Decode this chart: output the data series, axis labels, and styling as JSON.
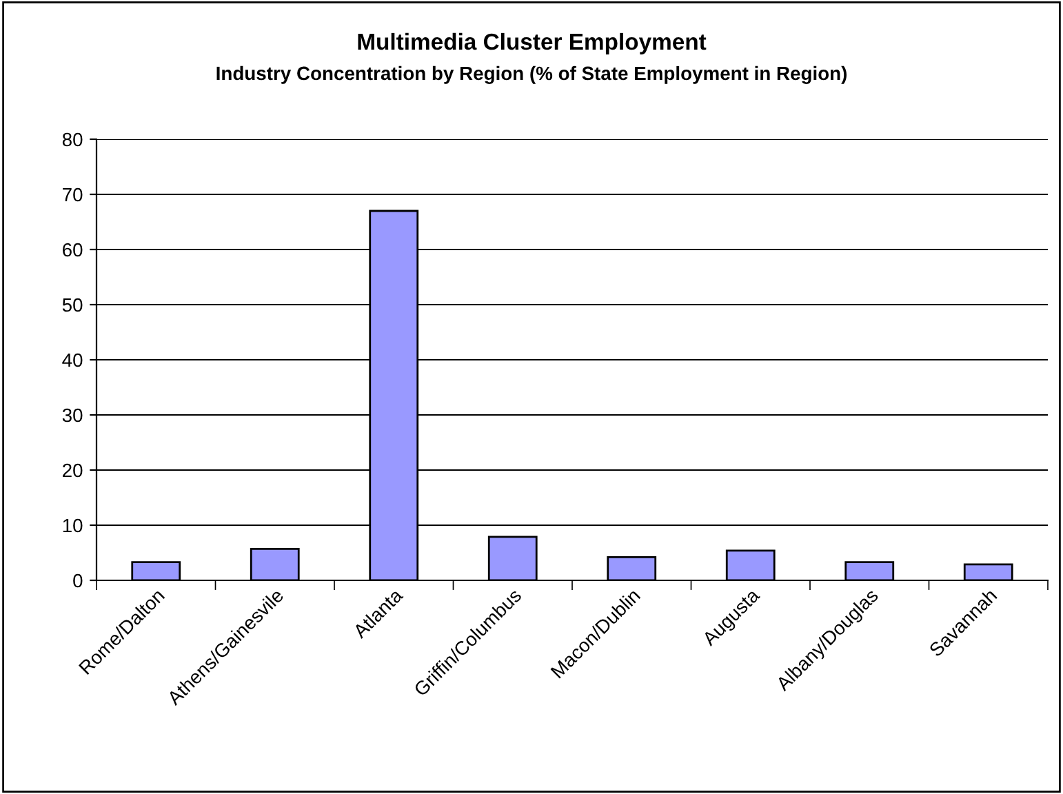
{
  "chart_data": {
    "type": "bar",
    "title": "Multimedia Cluster Employment",
    "subtitle": "Industry Concentration by Region (% of State Employment in Region)",
    "categories": [
      "Rome/Dalton",
      "Athens/Gainesvile",
      "Atlanta",
      "Griffin/Columbus",
      "Macon/Dublin",
      "Augusta",
      "Albany/Douglas",
      "Savannah"
    ],
    "values": [
      3.3,
      5.7,
      67,
      7.9,
      4.2,
      5.4,
      3.3,
      2.9
    ],
    "color": "#9999ff",
    "ylim": [
      0,
      80
    ],
    "yticks": [
      0,
      10,
      20,
      30,
      40,
      50,
      60,
      70,
      80
    ],
    "grid": "y"
  }
}
